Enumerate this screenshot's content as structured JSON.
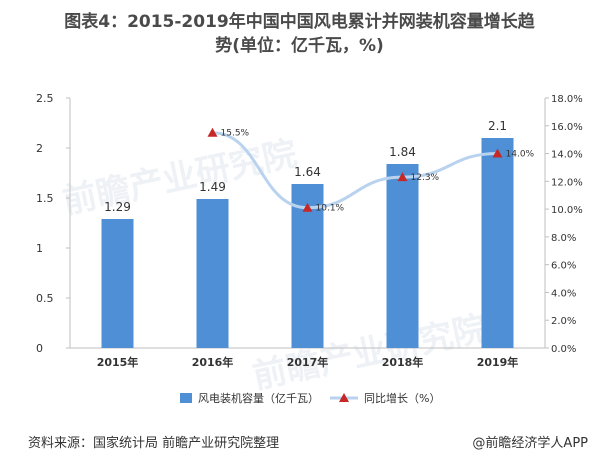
{
  "title_line1": "图表4：2015-2019年中国中国风电累计并网装机容量增长趋",
  "title_line2": "势(单位：亿千瓦，%)",
  "source": "资料来源：国家统计局 前瞻产业研究院整理",
  "brand": "@前瞻经济学人APP",
  "watermark": "前瞻产业研究院",
  "colors": {
    "bar": "#4f8fd6",
    "line": "#b9d3ef",
    "marker": "#c62828",
    "axis": "#bfbfbf",
    "text": "#333333"
  },
  "chart_data": {
    "type": "bar",
    "categories": [
      "2015年",
      "2016年",
      "2017年",
      "2018年",
      "2019年"
    ],
    "series": [
      {
        "name": "风电装机容量（亿千瓦）",
        "type": "bar",
        "axis": "left",
        "values": [
          1.29,
          1.49,
          1.64,
          1.84,
          2.1
        ],
        "labels": [
          "1.29",
          "1.49",
          "1.64",
          "1.84",
          "2.1"
        ]
      },
      {
        "name": "同比增长（%）",
        "type": "line",
        "axis": "right",
        "values": [
          null,
          15.5,
          10.1,
          12.3,
          14.0
        ],
        "labels": [
          "",
          "15.5%",
          "10.1%",
          "12.3%",
          "14.0%"
        ]
      }
    ],
    "y_left": {
      "min": 0,
      "max": 2.5,
      "ticks": [
        "0",
        "0.5",
        "1",
        "1.5",
        "2",
        "2.5"
      ],
      "tick_values": [
        0,
        0.5,
        1,
        1.5,
        2,
        2.5
      ]
    },
    "y_right": {
      "min": 0,
      "max": 18,
      "ticks": [
        "0.0%",
        "2.0%",
        "4.0%",
        "6.0%",
        "8.0%",
        "10.0%",
        "12.0%",
        "14.0%",
        "16.0%",
        "18.0%"
      ],
      "tick_values": [
        0,
        2,
        4,
        6,
        8,
        10,
        12,
        14,
        16,
        18
      ]
    },
    "legend_position": "bottom",
    "grid": false
  }
}
